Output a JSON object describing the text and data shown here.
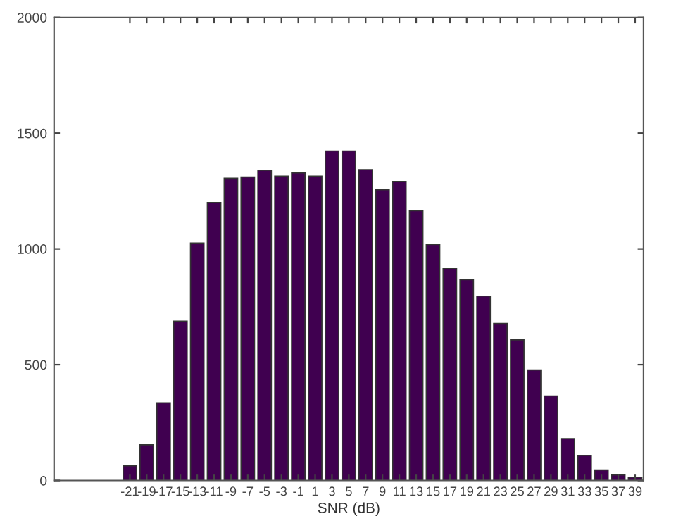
{
  "chart_data": {
    "type": "bar",
    "xlabel": "SNR (dB)",
    "x": [
      -21,
      -19,
      -17,
      -15,
      -13,
      -11,
      -9,
      -7,
      -5,
      -3,
      -1,
      1,
      3,
      5,
      7,
      9,
      11,
      13,
      15,
      17,
      19,
      21,
      23,
      25,
      27,
      29,
      31,
      33,
      35,
      37,
      39
    ],
    "values": [
      63,
      154,
      335,
      688,
      1025,
      1200,
      1305,
      1310,
      1340,
      1314,
      1328,
      1314,
      1423,
      1423,
      1342,
      1255,
      1291,
      1165,
      1019,
      916,
      867,
      796,
      678,
      607,
      477,
      365,
      181,
      108,
      45,
      24,
      14
    ],
    "color": "#400050",
    "xlim": [
      -30,
      40
    ],
    "xticks": [
      -21,
      -19,
      -17,
      -15,
      -13,
      -11,
      -9,
      -7,
      -5,
      -3,
      -1,
      1,
      3,
      5,
      7,
      9,
      11,
      13,
      15,
      17,
      19,
      21,
      23,
      25,
      27,
      29,
      31,
      33,
      35,
      37,
      39
    ],
    "ylim": [
      0,
      2000
    ],
    "yticks": [
      0,
      500,
      1000,
      1500,
      2000
    ],
    "grid": false,
    "legend": false
  }
}
